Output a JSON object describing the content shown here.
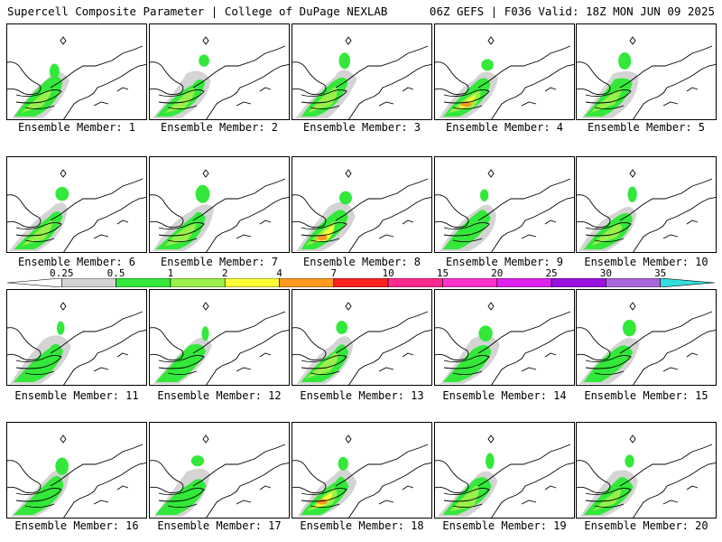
{
  "header": {
    "title": "Supercell Composite Parameter | College of DuPage NEXLAB",
    "valid": "06Z GEFS | F036 Valid: 18Z MON JUN 09 2025"
  },
  "colorbar": {
    "ticks": [
      "0.25",
      "0.5",
      "1",
      "2",
      "4",
      "7",
      "10",
      "15",
      "20",
      "25",
      "30",
      "35"
    ],
    "colors": [
      "#d4d4d4",
      "#33e83a",
      "#99f04a",
      "#ffff33",
      "#ff9a1f",
      "#ff2020",
      "#ff2a90",
      "#ff33cc",
      "#dd22ee",
      "#9911dd",
      "#aa66dd",
      "#33dddd"
    ]
  },
  "panel_label_prefix": "Ensemble Member:",
  "members": [
    {
      "label": "Ensemble Member: 1",
      "level": "moderate"
    },
    {
      "label": "Ensemble Member: 2",
      "level": "moderate"
    },
    {
      "label": "Ensemble Member: 3",
      "level": "moderate"
    },
    {
      "label": "Ensemble Member: 4",
      "level": "high"
    },
    {
      "label": "Ensemble Member: 5",
      "level": "moderate"
    },
    {
      "label": "Ensemble Member: 6",
      "level": "moderate"
    },
    {
      "label": "Ensemble Member: 7",
      "level": "moderate"
    },
    {
      "label": "Ensemble Member: 8",
      "level": "high"
    },
    {
      "label": "Ensemble Member: 9",
      "level": "low"
    },
    {
      "label": "Ensemble Member: 10",
      "level": "moderate"
    },
    {
      "label": "Ensemble Member: 11",
      "level": "low"
    },
    {
      "label": "Ensemble Member: 12",
      "level": "low"
    },
    {
      "label": "Ensemble Member: 13",
      "level": "moderate"
    },
    {
      "label": "Ensemble Member: 14",
      "level": "low"
    },
    {
      "label": "Ensemble Member: 15",
      "level": "low"
    },
    {
      "label": "Ensemble Member: 16",
      "level": "low"
    },
    {
      "label": "Ensemble Member: 17",
      "level": "low"
    },
    {
      "label": "Ensemble Member: 18",
      "level": "high"
    },
    {
      "label": "Ensemble Member: 19",
      "level": "moderate"
    },
    {
      "label": "Ensemble Member: 20",
      "level": "moderate"
    }
  ]
}
